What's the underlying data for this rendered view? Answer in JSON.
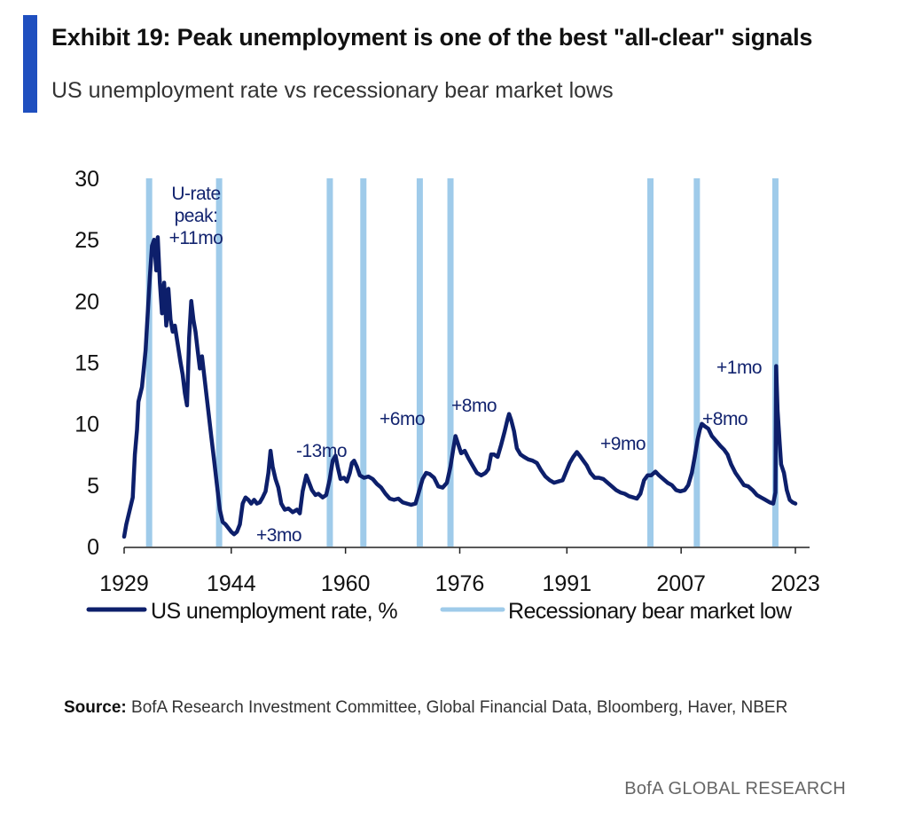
{
  "header": {
    "title": "Exhibit 19: Peak unemployment is one of the best \"all-clear\" signals",
    "subtitle": "US unemployment rate vs recessionary bear market lows"
  },
  "colors": {
    "accent": "#1f4fbf",
    "unemployment_line": "#0d1f6b",
    "bear_market_low": "#9fcbea",
    "annotation_text": "#13246f"
  },
  "chart_data": {
    "type": "line",
    "title": "",
    "xlabel": "",
    "ylabel": "",
    "xlim": [
      1929,
      2023
    ],
    "ylim": [
      0,
      30
    ],
    "y_ticks": [
      "0",
      "5",
      "10",
      "15",
      "20",
      "25",
      "30"
    ],
    "x_ticks": [
      "1929",
      "1944",
      "1960",
      "1976",
      "1991",
      "2007",
      "2023"
    ],
    "grid": false,
    "legend_position": "bottom",
    "series": [
      {
        "name": "US unemployment rate, %",
        "points": [
          [
            1929.0,
            0.8
          ],
          [
            1929.3,
            1.8
          ],
          [
            1929.8,
            3.0
          ],
          [
            1930.2,
            4.0
          ],
          [
            1930.5,
            7.5
          ],
          [
            1930.8,
            9.5
          ],
          [
            1931.0,
            11.8
          ],
          [
            1931.5,
            13.0
          ],
          [
            1932.0,
            16.0
          ],
          [
            1932.3,
            19.0
          ],
          [
            1932.6,
            22.0
          ],
          [
            1932.9,
            24.5
          ],
          [
            1933.2,
            25.0
          ],
          [
            1933.5,
            22.5
          ],
          [
            1933.7,
            25.2
          ],
          [
            1934.0,
            21.5
          ],
          [
            1934.3,
            19.0
          ],
          [
            1934.6,
            21.5
          ],
          [
            1934.9,
            18.0
          ],
          [
            1935.2,
            21.0
          ],
          [
            1935.5,
            18.5
          ],
          [
            1935.8,
            17.5
          ],
          [
            1936.1,
            18.0
          ],
          [
            1936.5,
            16.5
          ],
          [
            1936.9,
            15.0
          ],
          [
            1937.2,
            14.0
          ],
          [
            1937.5,
            12.5
          ],
          [
            1937.8,
            11.5
          ],
          [
            1938.1,
            17.0
          ],
          [
            1938.4,
            20.0
          ],
          [
            1938.7,
            18.5
          ],
          [
            1939.0,
            17.5
          ],
          [
            1939.3,
            16.0
          ],
          [
            1939.6,
            14.5
          ],
          [
            1939.9,
            15.5
          ],
          [
            1940.2,
            14.0
          ],
          [
            1940.5,
            12.5
          ],
          [
            1940.8,
            11.0
          ],
          [
            1941.2,
            9.0
          ],
          [
            1941.6,
            7.0
          ],
          [
            1942.0,
            5.0
          ],
          [
            1942.4,
            3.0
          ],
          [
            1942.8,
            2.0
          ],
          [
            1943.2,
            1.8
          ],
          [
            1943.6,
            1.5
          ],
          [
            1944.0,
            1.2
          ],
          [
            1944.4,
            1.0
          ],
          [
            1944.8,
            1.2
          ],
          [
            1945.2,
            1.8
          ],
          [
            1945.6,
            3.5
          ],
          [
            1946.0,
            4.0
          ],
          [
            1946.4,
            3.8
          ],
          [
            1946.8,
            3.5
          ],
          [
            1947.2,
            3.8
          ],
          [
            1947.6,
            3.5
          ],
          [
            1948.0,
            3.6
          ],
          [
            1948.4,
            4.0
          ],
          [
            1948.8,
            4.5
          ],
          [
            1949.2,
            6.0
          ],
          [
            1949.5,
            7.8
          ],
          [
            1949.8,
            6.5
          ],
          [
            1950.2,
            5.5
          ],
          [
            1950.6,
            4.8
          ],
          [
            1951.0,
            3.5
          ],
          [
            1951.5,
            3.0
          ],
          [
            1952.0,
            3.1
          ],
          [
            1952.6,
            2.8
          ],
          [
            1953.2,
            3.0
          ],
          [
            1953.6,
            2.7
          ],
          [
            1954.0,
            4.5
          ],
          [
            1954.5,
            5.8
          ],
          [
            1954.9,
            5.2
          ],
          [
            1955.3,
            4.6
          ],
          [
            1955.8,
            4.2
          ],
          [
            1956.2,
            4.3
          ],
          [
            1956.8,
            4.0
          ],
          [
            1957.3,
            4.2
          ],
          [
            1957.8,
            5.5
          ],
          [
            1958.2,
            7.0
          ],
          [
            1958.6,
            7.4
          ],
          [
            1958.9,
            6.5
          ],
          [
            1959.3,
            5.5
          ],
          [
            1959.8,
            5.6
          ],
          [
            1960.2,
            5.3
          ],
          [
            1960.6,
            6.0
          ],
          [
            1960.9,
            6.8
          ],
          [
            1961.2,
            7.0
          ],
          [
            1961.6,
            6.5
          ],
          [
            1962.0,
            5.8
          ],
          [
            1962.6,
            5.6
          ],
          [
            1963.2,
            5.7
          ],
          [
            1963.8,
            5.5
          ],
          [
            1964.4,
            5.1
          ],
          [
            1965.0,
            4.8
          ],
          [
            1965.6,
            4.3
          ],
          [
            1966.2,
            3.9
          ],
          [
            1966.8,
            3.8
          ],
          [
            1967.4,
            3.9
          ],
          [
            1968.0,
            3.6
          ],
          [
            1968.6,
            3.5
          ],
          [
            1969.2,
            3.4
          ],
          [
            1969.8,
            3.5
          ],
          [
            1970.3,
            4.5
          ],
          [
            1970.8,
            5.5
          ],
          [
            1971.3,
            6.0
          ],
          [
            1971.8,
            5.9
          ],
          [
            1972.4,
            5.6
          ],
          [
            1973.0,
            4.9
          ],
          [
            1973.6,
            4.8
          ],
          [
            1974.2,
            5.2
          ],
          [
            1974.7,
            6.5
          ],
          [
            1975.1,
            8.0
          ],
          [
            1975.4,
            9.0
          ],
          [
            1975.8,
            8.3
          ],
          [
            1976.2,
            7.6
          ],
          [
            1976.7,
            7.8
          ],
          [
            1977.2,
            7.2
          ],
          [
            1977.8,
            6.6
          ],
          [
            1978.4,
            6.0
          ],
          [
            1979.0,
            5.8
          ],
          [
            1979.6,
            6.0
          ],
          [
            1980.0,
            6.3
          ],
          [
            1980.4,
            7.5
          ],
          [
            1980.8,
            7.5
          ],
          [
            1981.3,
            7.3
          ],
          [
            1981.8,
            8.3
          ],
          [
            1982.3,
            9.4
          ],
          [
            1982.7,
            10.4
          ],
          [
            1982.9,
            10.8
          ],
          [
            1983.2,
            10.3
          ],
          [
            1983.6,
            9.4
          ],
          [
            1984.0,
            8.0
          ],
          [
            1984.5,
            7.5
          ],
          [
            1985.0,
            7.3
          ],
          [
            1985.6,
            7.1
          ],
          [
            1986.2,
            7.0
          ],
          [
            1986.8,
            6.8
          ],
          [
            1987.4,
            6.2
          ],
          [
            1988.0,
            5.7
          ],
          [
            1988.6,
            5.4
          ],
          [
            1989.2,
            5.2
          ],
          [
            1989.8,
            5.3
          ],
          [
            1990.4,
            5.4
          ],
          [
            1990.9,
            6.1
          ],
          [
            1991.4,
            6.8
          ],
          [
            1991.9,
            7.3
          ],
          [
            1992.4,
            7.7
          ],
          [
            1992.8,
            7.4
          ],
          [
            1993.3,
            7.0
          ],
          [
            1993.8,
            6.6
          ],
          [
            1994.3,
            6.0
          ],
          [
            1994.9,
            5.6
          ],
          [
            1995.5,
            5.6
          ],
          [
            1996.1,
            5.5
          ],
          [
            1996.7,
            5.2
          ],
          [
            1997.3,
            4.9
          ],
          [
            1997.9,
            4.6
          ],
          [
            1998.5,
            4.4
          ],
          [
            1999.1,
            4.3
          ],
          [
            1999.7,
            4.1
          ],
          [
            2000.3,
            4.0
          ],
          [
            2000.8,
            3.9
          ],
          [
            2001.3,
            4.3
          ],
          [
            2001.8,
            5.4
          ],
          [
            2002.3,
            5.8
          ],
          [
            2002.8,
            5.8
          ],
          [
            2003.4,
            6.1
          ],
          [
            2003.9,
            5.8
          ],
          [
            2004.5,
            5.5
          ],
          [
            2005.1,
            5.2
          ],
          [
            2005.7,
            5.0
          ],
          [
            2006.3,
            4.6
          ],
          [
            2006.9,
            4.5
          ],
          [
            2007.5,
            4.6
          ],
          [
            2008.0,
            5.0
          ],
          [
            2008.5,
            6.0
          ],
          [
            2008.9,
            7.3
          ],
          [
            2009.3,
            8.7
          ],
          [
            2009.6,
            9.5
          ],
          [
            2009.9,
            10.0
          ],
          [
            2010.3,
            9.8
          ],
          [
            2010.8,
            9.6
          ],
          [
            2011.3,
            9.0
          ],
          [
            2011.9,
            8.6
          ],
          [
            2012.5,
            8.2
          ],
          [
            2013.0,
            7.9
          ],
          [
            2013.5,
            7.5
          ],
          [
            2014.0,
            6.7
          ],
          [
            2014.6,
            6.0
          ],
          [
            2015.2,
            5.5
          ],
          [
            2015.8,
            5.0
          ],
          [
            2016.4,
            4.9
          ],
          [
            2017.0,
            4.6
          ],
          [
            2017.6,
            4.2
          ],
          [
            2018.2,
            4.0
          ],
          [
            2018.8,
            3.8
          ],
          [
            2019.4,
            3.6
          ],
          [
            2019.9,
            3.5
          ],
          [
            2020.2,
            4.4
          ],
          [
            2020.3,
            14.7
          ],
          [
            2020.5,
            11.1
          ],
          [
            2020.8,
            8.4
          ],
          [
            2021.0,
            6.7
          ],
          [
            2021.4,
            6.0
          ],
          [
            2021.8,
            4.6
          ],
          [
            2022.2,
            3.8
          ],
          [
            2022.6,
            3.6
          ],
          [
            2023.0,
            3.5
          ]
        ]
      }
    ],
    "bear_market_lows": [
      {
        "x": 1932.5
      },
      {
        "x": 1942.3
      },
      {
        "x": 1957.8
      },
      {
        "x": 1962.5
      },
      {
        "x": 1970.4
      },
      {
        "x": 1974.7
      },
      {
        "x": 2002.7
      },
      {
        "x": 2009.2
      },
      {
        "x": 2020.2
      }
    ],
    "annotations": [
      {
        "lines": [
          "U-rate",
          "peak:",
          "+11mo"
        ]
      },
      {
        "lines": [
          "+3mo"
        ]
      },
      {
        "lines": [
          "-13mo"
        ]
      },
      {
        "lines": [
          "+6mo"
        ]
      },
      {
        "lines": [
          "+8mo"
        ]
      },
      {
        "lines": [
          "+9mo"
        ]
      },
      {
        "lines": [
          "+8mo"
        ]
      },
      {
        "lines": [
          "+1mo"
        ]
      }
    ],
    "legend": [
      {
        "label": "US unemployment rate, %"
      },
      {
        "label": "Recessionary bear market low"
      }
    ]
  },
  "source": {
    "label": "Source:",
    "text": "BofA Research Investment Committee, Global Financial Data, Bloomberg, Haver, NBER"
  },
  "branding": "BofA GLOBAL RESEARCH"
}
